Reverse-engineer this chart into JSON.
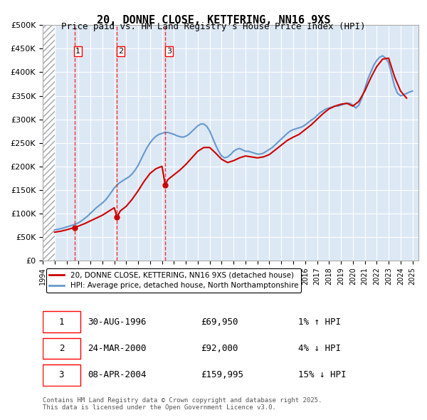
{
  "title": "20, DONNE CLOSE, KETTERING, NN16 9XS",
  "subtitle": "Price paid vs. HM Land Registry's House Price Index (HPI)",
  "legend_line1": "20, DONNE CLOSE, KETTERING, NN16 9XS (detached house)",
  "legend_line2": "HPI: Average price, detached house, North Northamptonshire",
  "footer": "Contains HM Land Registry data © Crown copyright and database right 2025.\nThis data is licensed under the Open Government Licence v3.0.",
  "ylim": [
    0,
    500000
  ],
  "yticks": [
    0,
    50000,
    100000,
    150000,
    200000,
    250000,
    300000,
    350000,
    400000,
    450000,
    500000
  ],
  "ytick_labels": [
    "£0",
    "£50K",
    "£100K",
    "£150K",
    "£200K",
    "£250K",
    "£300K",
    "£350K",
    "£400K",
    "£450K",
    "£500K"
  ],
  "xlim_start": 1994.0,
  "xlim_end": 2025.5,
  "hpi_color": "#6699cc",
  "price_color": "#cc0000",
  "transactions": [
    {
      "num": 1,
      "date": "30-AUG-1996",
      "price": 69950,
      "pct": "1%",
      "dir": "↑",
      "year": 1996.66
    },
    {
      "num": 2,
      "date": "24-MAR-2000",
      "price": 92000,
      "pct": "4%",
      "dir": "↓",
      "year": 2000.23
    },
    {
      "num": 3,
      "date": "08-APR-2004",
      "price": 159995,
      "pct": "15%",
      "dir": "↓",
      "year": 2004.27
    }
  ],
  "table_rows": [
    {
      "num": 1,
      "date": "30-AUG-1996",
      "price": "£69,950",
      "rel": "1% ↑ HPI"
    },
    {
      "num": 2,
      "date": "24-MAR-2000",
      "price": "£92,000",
      "rel": "4% ↓ HPI"
    },
    {
      "num": 3,
      "date": "08-APR-2004",
      "price": "£159,995",
      "rel": "15% ↓ HPI"
    }
  ],
  "hpi_x": [
    1995.0,
    1995.25,
    1995.5,
    1995.75,
    1996.0,
    1996.25,
    1996.5,
    1996.75,
    1997.0,
    1997.25,
    1997.5,
    1997.75,
    1998.0,
    1998.25,
    1998.5,
    1998.75,
    1999.0,
    1999.25,
    1999.5,
    1999.75,
    2000.0,
    2000.25,
    2000.5,
    2000.75,
    2001.0,
    2001.25,
    2001.5,
    2001.75,
    2002.0,
    2002.25,
    2002.5,
    2002.75,
    2003.0,
    2003.25,
    2003.5,
    2003.75,
    2004.0,
    2004.25,
    2004.5,
    2004.75,
    2005.0,
    2005.25,
    2005.5,
    2005.75,
    2006.0,
    2006.25,
    2006.5,
    2006.75,
    2007.0,
    2007.25,
    2007.5,
    2007.75,
    2008.0,
    2008.25,
    2008.5,
    2008.75,
    2009.0,
    2009.25,
    2009.5,
    2009.75,
    2010.0,
    2010.25,
    2010.5,
    2010.75,
    2011.0,
    2011.25,
    2011.5,
    2011.75,
    2012.0,
    2012.25,
    2012.5,
    2012.75,
    2013.0,
    2013.25,
    2013.5,
    2013.75,
    2014.0,
    2014.25,
    2014.5,
    2014.75,
    2015.0,
    2015.25,
    2015.5,
    2015.75,
    2016.0,
    2016.25,
    2016.5,
    2016.75,
    2017.0,
    2017.25,
    2017.5,
    2017.75,
    2018.0,
    2018.25,
    2018.5,
    2018.75,
    2019.0,
    2019.25,
    2019.5,
    2019.75,
    2020.0,
    2020.25,
    2020.5,
    2020.75,
    2021.0,
    2021.25,
    2021.5,
    2021.75,
    2022.0,
    2022.25,
    2022.5,
    2022.75,
    2023.0,
    2023.25,
    2023.5,
    2023.75,
    2024.0,
    2024.25,
    2024.5,
    2024.75,
    2025.0
  ],
  "hpi_y": [
    65000,
    66000,
    67500,
    69000,
    71000,
    73000,
    75000,
    77000,
    80000,
    84000,
    89000,
    94000,
    100000,
    106000,
    112000,
    117000,
    122000,
    128000,
    136000,
    145000,
    154000,
    161000,
    166000,
    170000,
    174000,
    178000,
    184000,
    192000,
    202000,
    215000,
    228000,
    240000,
    250000,
    258000,
    264000,
    268000,
    270000,
    272000,
    272000,
    270000,
    268000,
    265000,
    263000,
    262000,
    264000,
    268000,
    274000,
    280000,
    286000,
    290000,
    290000,
    285000,
    275000,
    260000,
    245000,
    232000,
    222000,
    218000,
    220000,
    225000,
    232000,
    236000,
    238000,
    235000,
    232000,
    232000,
    230000,
    228000,
    226000,
    226000,
    228000,
    232000,
    236000,
    240000,
    246000,
    252000,
    258000,
    264000,
    270000,
    275000,
    278000,
    280000,
    282000,
    284000,
    288000,
    293000,
    298000,
    302000,
    308000,
    314000,
    318000,
    322000,
    324000,
    326000,
    328000,
    328000,
    330000,
    332000,
    334000,
    334000,
    330000,
    324000,
    330000,
    345000,
    365000,
    385000,
    400000,
    415000,
    425000,
    432000,
    435000,
    430000,
    420000,
    395000,
    370000,
    355000,
    350000,
    352000,
    355000,
    358000,
    360000
  ],
  "price_x": [
    1995.0,
    1995.5,
    1996.0,
    1996.66,
    1997.0,
    1997.5,
    1998.0,
    1998.5,
    1999.0,
    1999.5,
    2000.0,
    2000.23,
    2000.5,
    2001.0,
    2001.5,
    2002.0,
    2002.5,
    2003.0,
    2003.5,
    2004.0,
    2004.27,
    2004.5,
    2005.0,
    2005.5,
    2006.0,
    2006.5,
    2007.0,
    2007.5,
    2008.0,
    2008.5,
    2009.0,
    2009.5,
    2010.0,
    2010.5,
    2011.0,
    2011.5,
    2012.0,
    2012.5,
    2013.0,
    2013.5,
    2014.0,
    2014.5,
    2015.0,
    2015.5,
    2016.0,
    2016.5,
    2017.0,
    2017.5,
    2018.0,
    2018.5,
    2019.0,
    2019.5,
    2020.0,
    2020.5,
    2021.0,
    2021.5,
    2022.0,
    2022.5,
    2023.0,
    2023.5,
    2024.0,
    2024.5
  ],
  "price_y": [
    60000,
    62000,
    65000,
    69950,
    73000,
    78000,
    84000,
    90000,
    96000,
    104000,
    112000,
    92000,
    105000,
    115000,
    130000,
    148000,
    168000,
    185000,
    195000,
    200000,
    159995,
    172000,
    182000,
    192000,
    204000,
    218000,
    232000,
    240000,
    240000,
    228000,
    215000,
    208000,
    212000,
    218000,
    222000,
    220000,
    218000,
    220000,
    225000,
    235000,
    245000,
    255000,
    262000,
    268000,
    278000,
    288000,
    300000,
    312000,
    322000,
    328000,
    332000,
    334000,
    328000,
    338000,
    360000,
    388000,
    412000,
    428000,
    430000,
    390000,
    360000,
    345000
  ]
}
